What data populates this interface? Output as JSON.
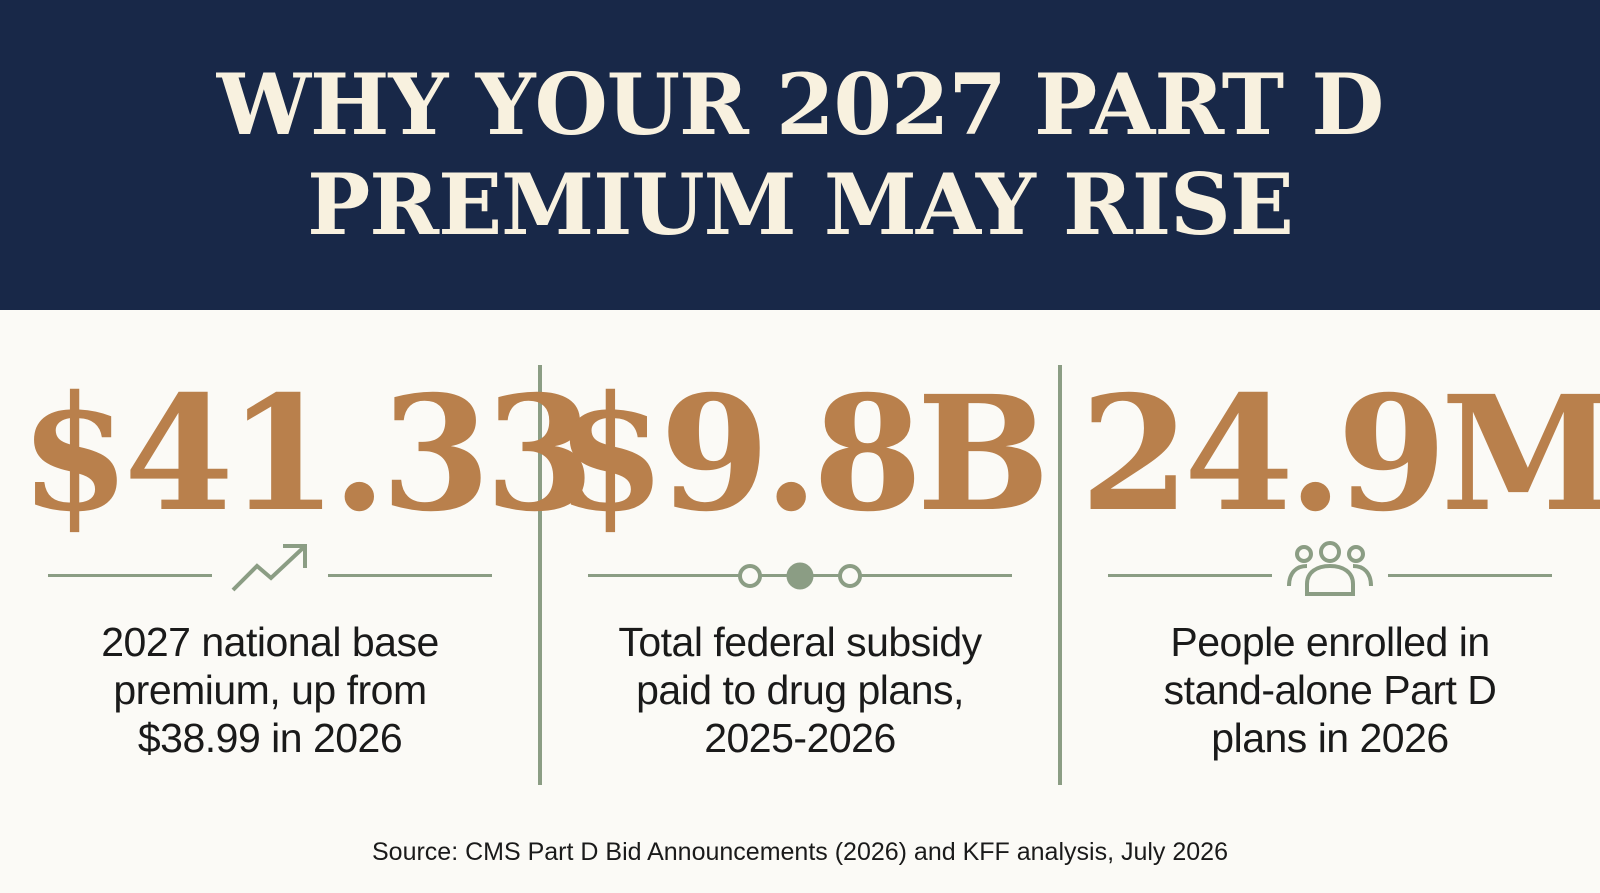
{
  "title": {
    "line1": "WHY YOUR 2027 PART D",
    "line2": "PREMIUM MAY RISE"
  },
  "stats": [
    {
      "value": "$41.33",
      "icon": "trending-up-icon",
      "description": [
        "2027 national base",
        "premium, up from",
        "$38.99 in 2026"
      ]
    },
    {
      "value": "$9.8B",
      "icon": "timeline-dots-icon",
      "description": [
        "Total federal subsidy",
        "paid to drug plans,",
        "2025-2026"
      ]
    },
    {
      "value": "24.9M",
      "icon": "people-group-icon",
      "description": [
        "People enrolled in",
        "stand-alone Part D",
        "plans in 2026"
      ]
    }
  ],
  "source": "Source: CMS Part D Bid Announcements (2026) and KFF analysis, July 2026",
  "colors": {
    "banner": "#182848",
    "title_text": "#f8f1df",
    "accent": "#b9804c",
    "rule": "#8b9d84",
    "background": "#fbfaf6"
  }
}
